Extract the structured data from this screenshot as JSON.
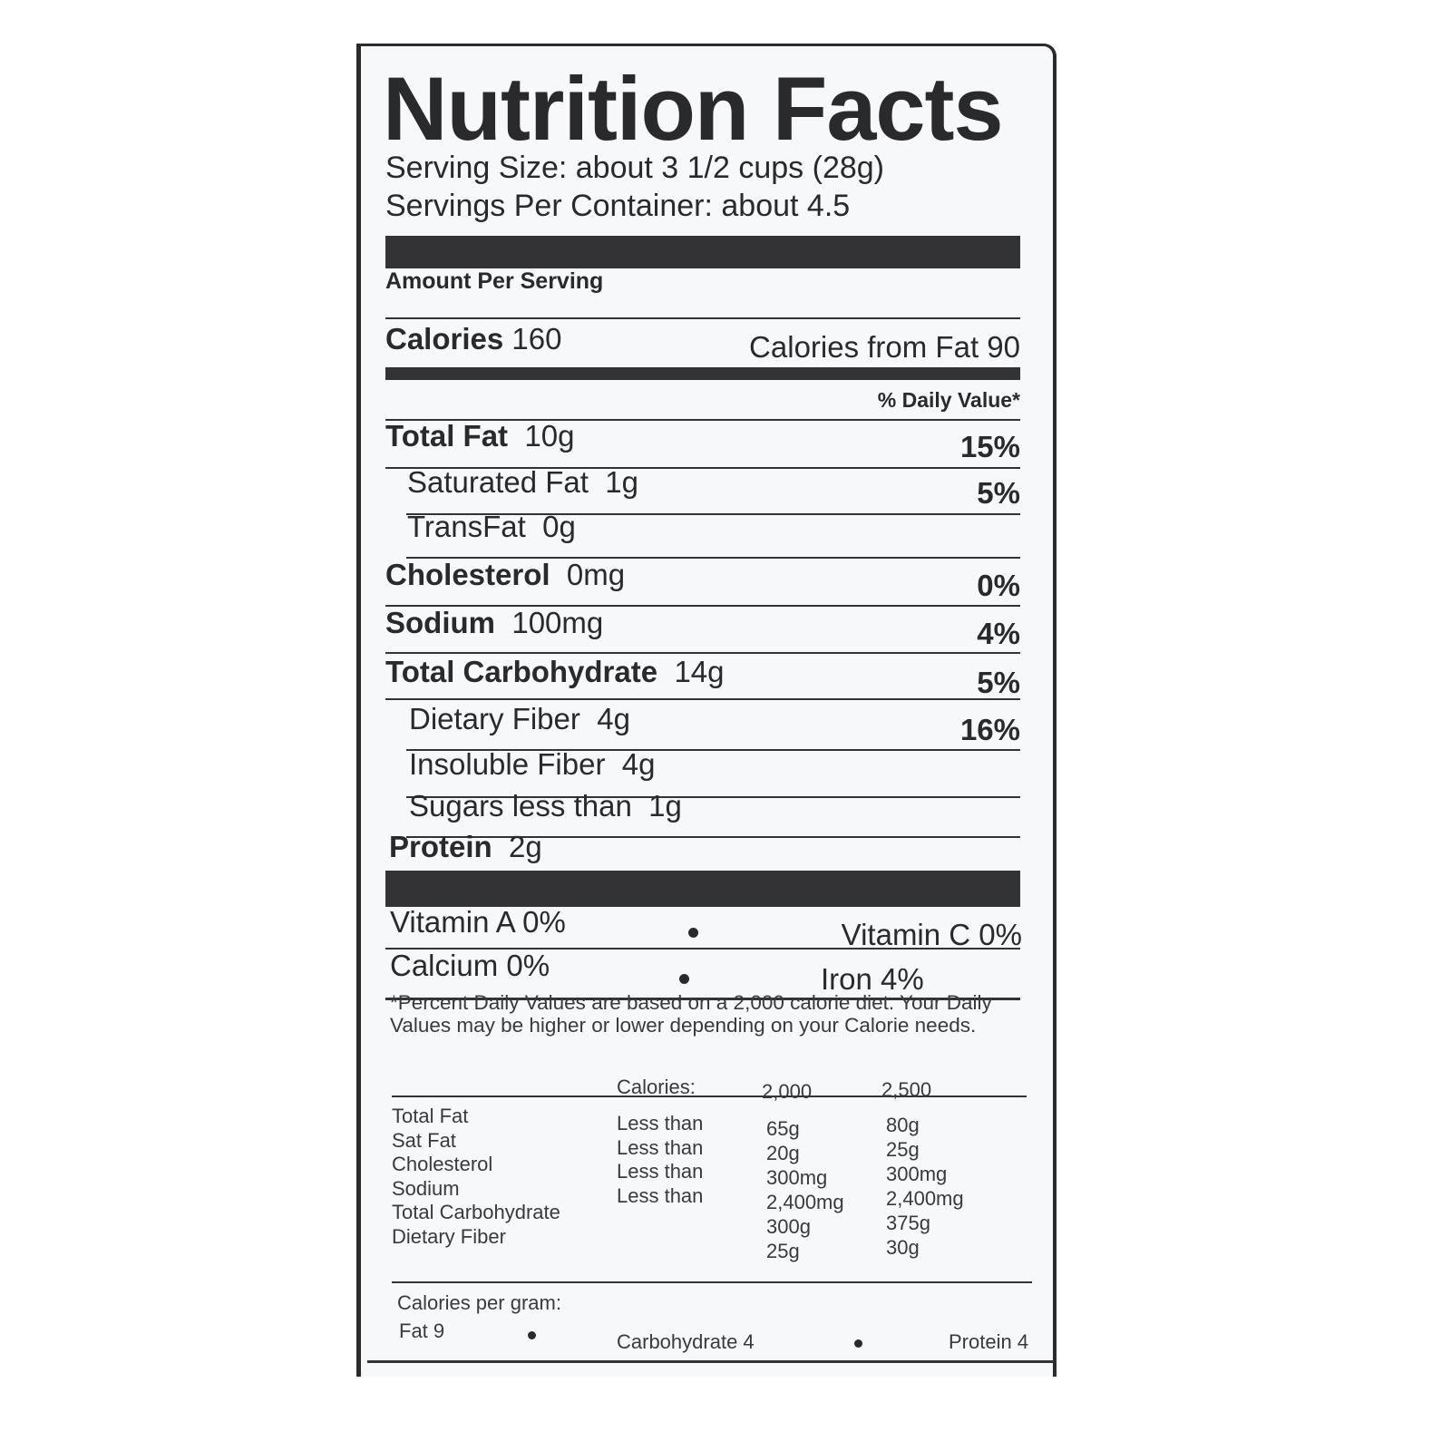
{
  "title": "Nutrition Facts",
  "serving_size": "Serving Size: about 3 1/2 cups (28g)",
  "servings_per_container": "Servings Per Container: about 4.5",
  "amount_per_serving": "Amount Per Serving",
  "calories": {
    "label": "Calories",
    "value": "160",
    "from_fat_label": "Calories from Fat",
    "from_fat_value": "90"
  },
  "daily_value_header": "% Daily Value*",
  "nutrients": [
    {
      "label": "Total Fat",
      "amount": "10g",
      "dv": "15%"
    },
    {
      "label": "Saturated Fat",
      "amount": "1g",
      "dv": "5%"
    },
    {
      "label": "TransFat",
      "amount": "0g",
      "dv": ""
    },
    {
      "label": "Cholesterol",
      "amount": "0mg",
      "dv": "0%"
    },
    {
      "label": "Sodium",
      "amount": "100mg",
      "dv": "4%"
    },
    {
      "label": "Total Carbohydrate",
      "amount": "14g",
      "dv": "5%"
    },
    {
      "label": "Dietary Fiber",
      "amount": "4g",
      "dv": "16%"
    },
    {
      "label": "Insoluble Fiber",
      "amount": "4g",
      "dv": ""
    },
    {
      "label": "Sugars less than",
      "amount": "1g",
      "dv": ""
    },
    {
      "label": "Protein",
      "amount": "2g",
      "dv": ""
    }
  ],
  "vitamins": [
    {
      "label": "Vitamin A",
      "value": "0%"
    },
    {
      "label": "Vitamin C",
      "value": "0%"
    },
    {
      "label": "Calcium",
      "value": "0%"
    },
    {
      "label": "Iron",
      "value": "4%"
    }
  ],
  "footnote": "*Percent Daily Values are based on a 2,000 calorie diet. Your Daily Values may be higher or lower depending on your Calorie needs.",
  "reference_table": {
    "calories_label": "Calories:",
    "columns": [
      "2,000",
      "2,500"
    ],
    "rows": [
      {
        "nutrient": "Total Fat",
        "qualifier": "Less than",
        "v2000": "65g",
        "v2500": "80g"
      },
      {
        "nutrient": "Sat Fat",
        "qualifier": "Less than",
        "v2000": "20g",
        "v2500": "25g"
      },
      {
        "nutrient": "Cholesterol",
        "qualifier": "Less than",
        "v2000": "300mg",
        "v2500": "300mg"
      },
      {
        "nutrient": "Sodium",
        "qualifier": "Less than",
        "v2000": "2,400mg",
        "v2500": "2,400mg"
      },
      {
        "nutrient": "Total Carbohydrate",
        "qualifier": "",
        "v2000": "300g",
        "v2500": "375g"
      },
      {
        "nutrient": "Dietary Fiber",
        "qualifier": "",
        "v2000": "25g",
        "v2500": "30g"
      }
    ]
  },
  "calories_per_gram": {
    "label": "Calories per gram:",
    "fat": "Fat 9",
    "carbohydrate": "Carbohydrate 4",
    "protein": "Protein 4"
  }
}
